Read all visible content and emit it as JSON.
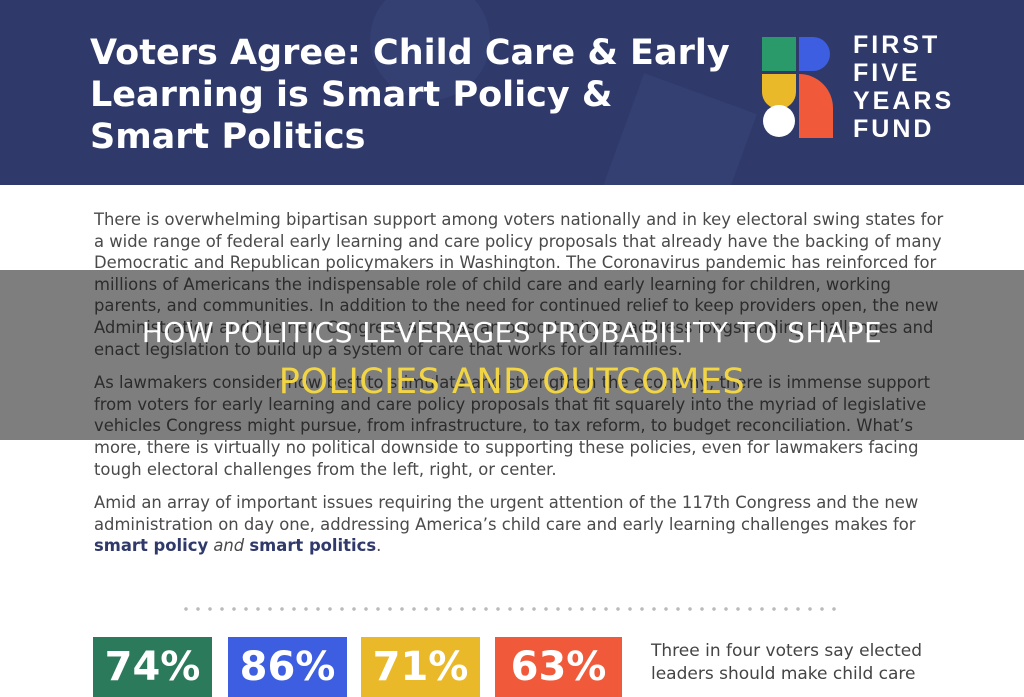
{
  "header": {
    "title": "Voters Agree: Child Care & Early Learning is Smart Policy & Smart Politics",
    "logo": [
      "FIRST",
      "FIVE",
      "YEARS",
      "FUND"
    ]
  },
  "paragraphs": [
    [
      {
        "text": "There is overwhelming bipartisan support among voters nationally and in key electoral swing states for a wide range of federal early learning and care policy proposals that already have the backing of many Democratic and Republican policymakers in Washington. The Coronavirus pandemic has reinforced for millions of Americans the indispensable role of child care and early learning for children, working parents, and communities. In addition to the need for continued relief to keep providers open, the new Administration and the new Congress also has an opportunity to address longstanding challenges and enact legislation to build up a system of care that works for all families.",
        "style": "normal"
      }
    ],
    [
      {
        "text": "As lawmakers consider how best to stimulate and strengthen the economy, there is immense support from voters for early learning and care policy proposals that fit squarely into the myriad of legislative vehicles Congress might pursue, from infrastructure, to tax reform, to budget reconciliation. What’s more, there is virtually no political downside to supporting these policies, even for lawmakers facing tough electoral challenges from the left, right, or center.",
        "style": "normal"
      }
    ],
    [
      {
        "text": "Amid an array of important issues requiring the urgent attention of the 117th Congress and the new administration on day one, addressing America’s child care and early learning challenges makes for ",
        "style": "normal"
      },
      {
        "text": "smart policy",
        "style": "bold"
      },
      {
        "text": " and ",
        "style": "italic"
      },
      {
        "text": "smart politics",
        "style": "bold"
      },
      {
        "text": ".",
        "style": "normal"
      }
    ]
  ],
  "stats": [
    {
      "label": "74%",
      "color": "#2b7a5b"
    },
    {
      "label": "86%",
      "color": "#3d5ee0"
    },
    {
      "label": "71%",
      "color": "#e9b92a"
    },
    {
      "label": "63%",
      "color": "#f05a3a"
    }
  ],
  "side_text": [
    "Three in four voters say elected",
    "leaders should make child care"
  ],
  "overlay": {
    "line1": "HOW POLITICS LEVERAGES PROBABILITY TO SHAPE",
    "line2": "POLICIES AND OUTCOMES"
  }
}
